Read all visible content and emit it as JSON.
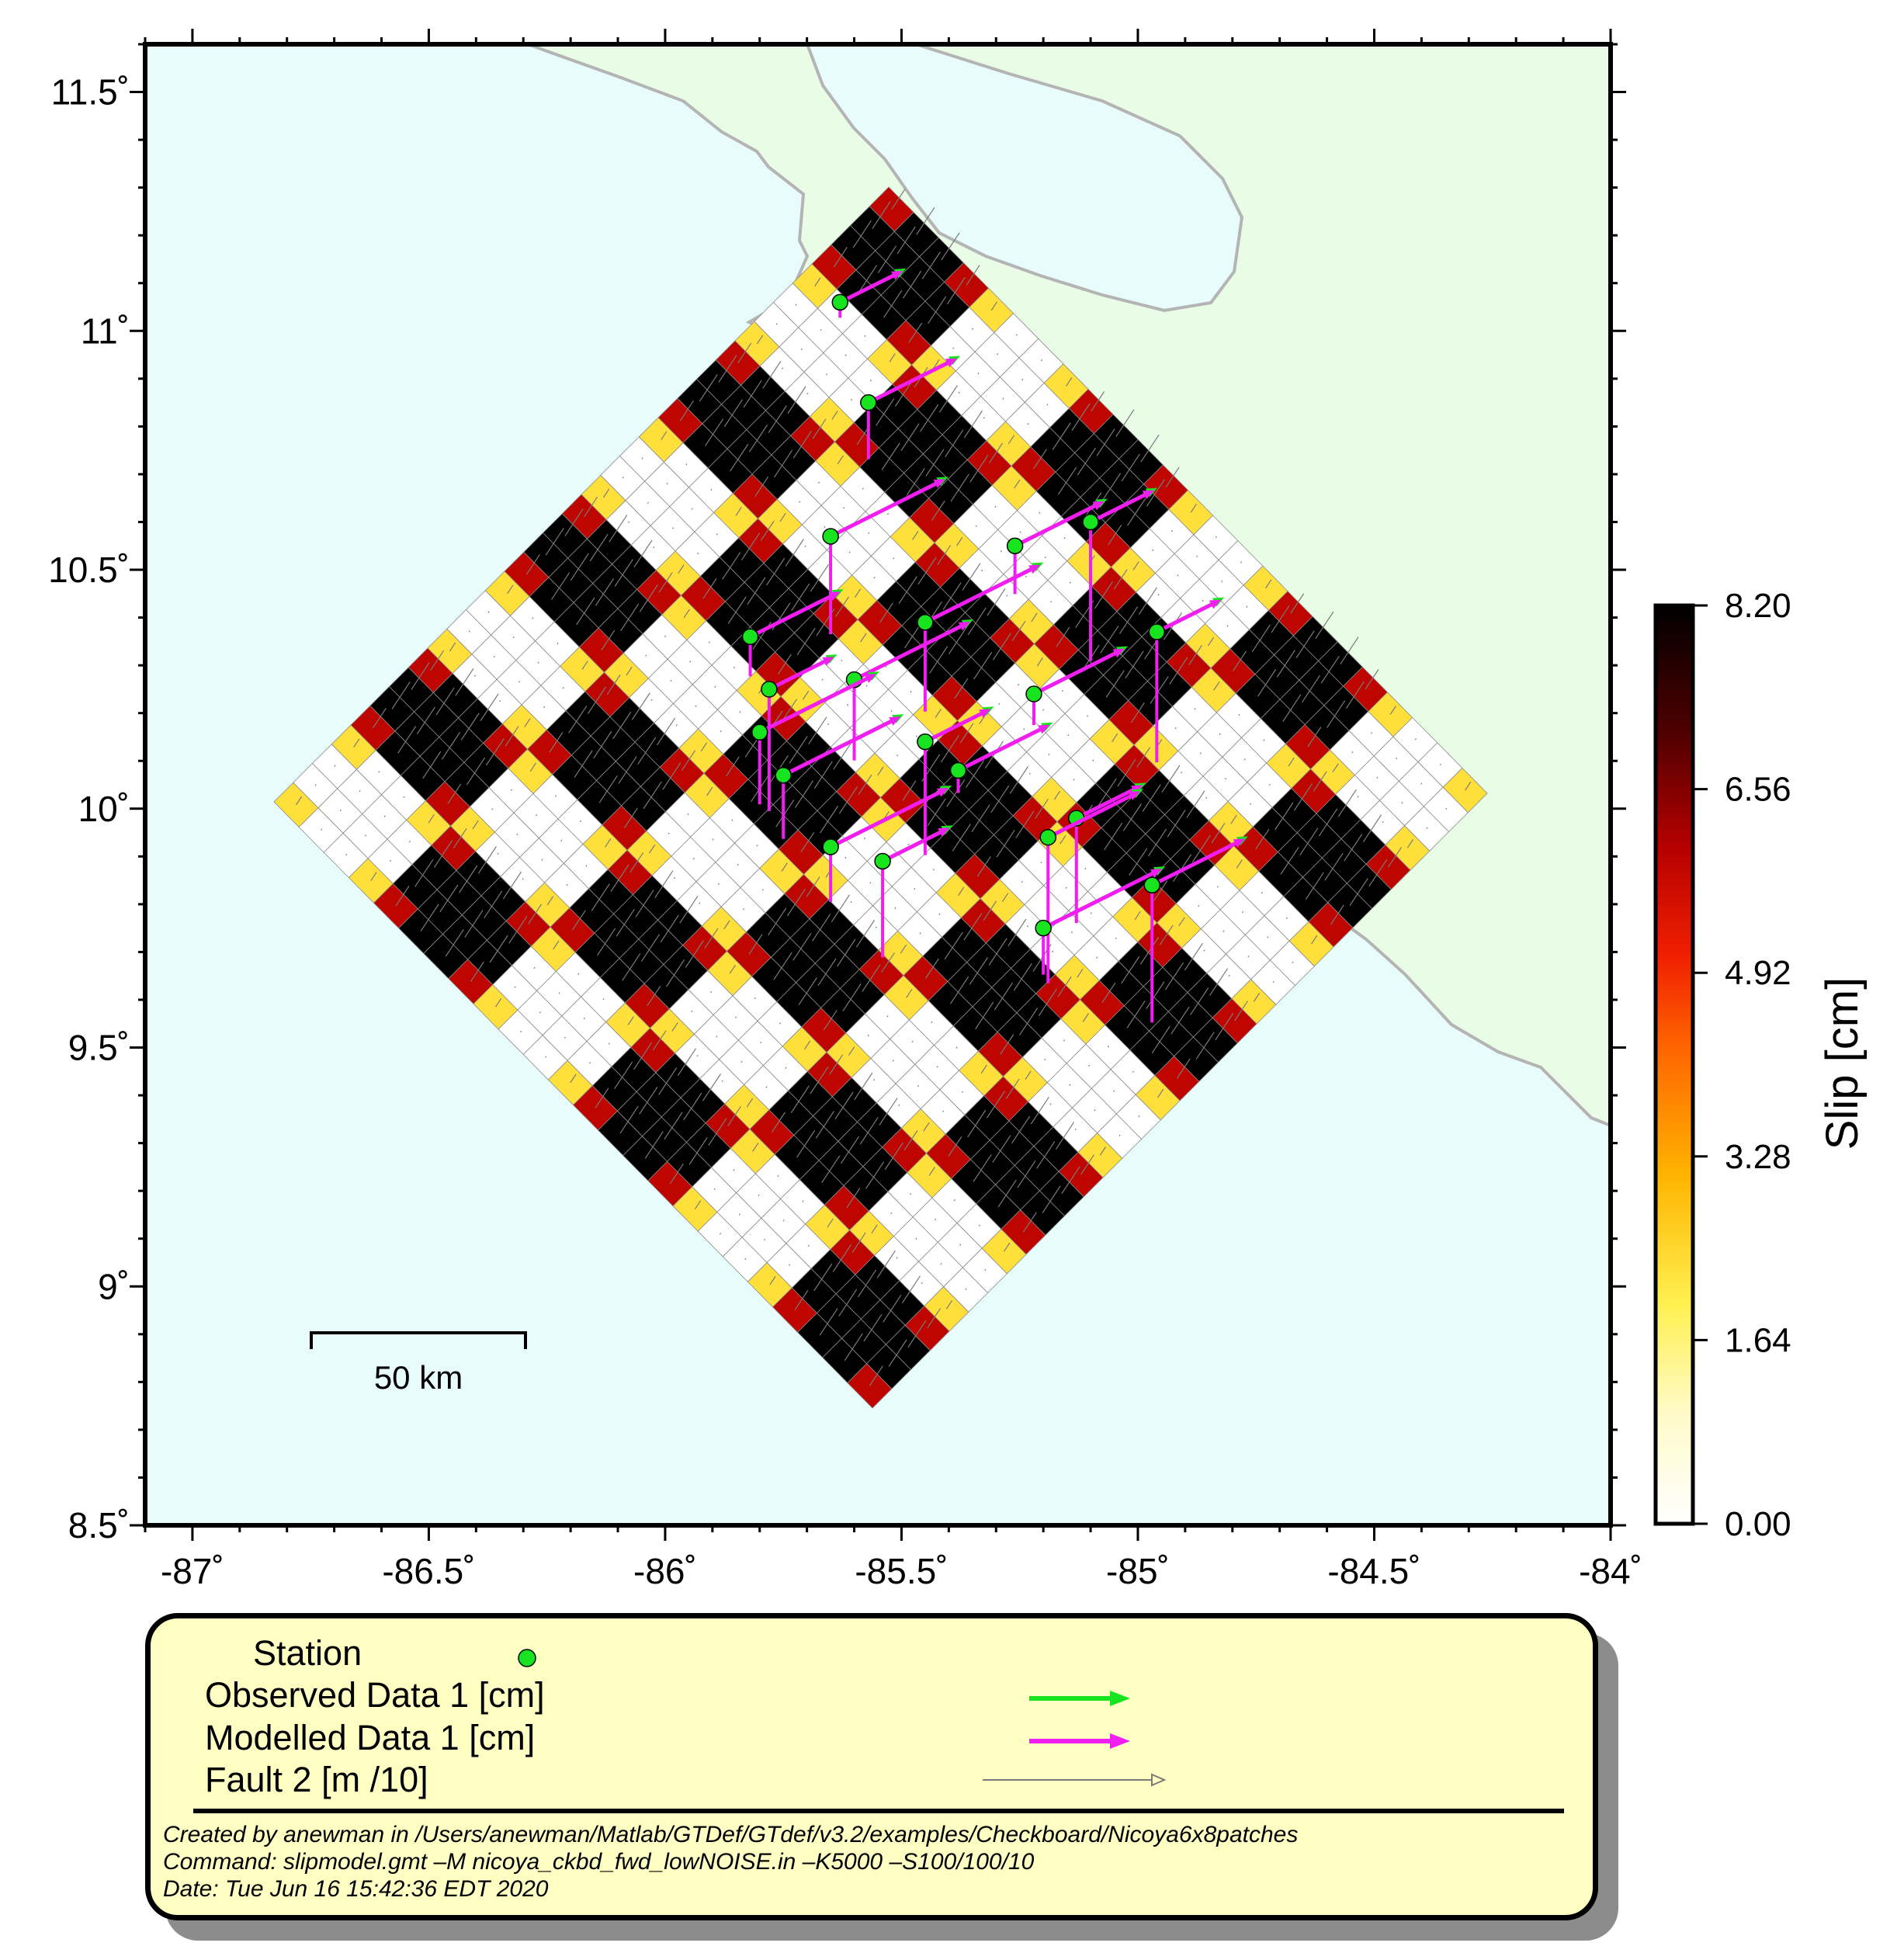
{
  "map": {
    "lon_range": [
      -87.1,
      -84.0
    ],
    "lat_range": [
      8.5,
      11.6
    ],
    "x_ticks": [
      "-87˚",
      "-86.5˚",
      "-86˚",
      "-85.5˚",
      "-85˚",
      "-84.5˚",
      "-84˚"
    ],
    "y_ticks": [
      "8.5˚",
      "9˚",
      "9.5˚",
      "10˚",
      "10.5˚",
      "11˚",
      "11.5˚"
    ],
    "colors": {
      "ocean": "#e8fcfc",
      "land": "#e8fce6",
      "coastline": "#b4b4b4",
      "station": "#17e31f",
      "observed": "#17e31f",
      "modelled": "#f01ef0",
      "fault": "#7a7a7a"
    },
    "scale_bar": "50 km",
    "fault_grid": {
      "columns": 24,
      "rows": 32
    }
  },
  "colorbar": {
    "title": "Slip [cm]",
    "min": 0.0,
    "max": 8.2,
    "labels": [
      "8.20",
      "6.56",
      "4.92",
      "3.28",
      "1.64",
      "0.00"
    ]
  },
  "stations": [
    {
      "lon": -85.63,
      "lat": 11.06
    },
    {
      "lon": -85.57,
      "lat": 10.85
    },
    {
      "lon": -85.65,
      "lat": 10.57
    },
    {
      "lon": -85.1,
      "lat": 10.6
    },
    {
      "lon": -85.26,
      "lat": 10.55
    },
    {
      "lon": -85.45,
      "lat": 10.39
    },
    {
      "lon": -84.96,
      "lat": 10.37
    },
    {
      "lon": -85.82,
      "lat": 10.36
    },
    {
      "lon": -85.6,
      "lat": 10.27
    },
    {
      "lon": -85.78,
      "lat": 10.25
    },
    {
      "lon": -85.22,
      "lat": 10.24
    },
    {
      "lon": -85.8,
      "lat": 10.16
    },
    {
      "lon": -85.45,
      "lat": 10.14
    },
    {
      "lon": -85.38,
      "lat": 10.08
    },
    {
      "lon": -85.75,
      "lat": 10.07
    },
    {
      "lon": -85.13,
      "lat": 9.98
    },
    {
      "lon": -85.19,
      "lat": 9.94
    },
    {
      "lon": -85.65,
      "lat": 9.92
    },
    {
      "lon": -85.54,
      "lat": 9.89
    },
    {
      "lon": -84.97,
      "lat": 9.84
    },
    {
      "lon": -85.2,
      "lat": 9.75
    }
  ],
  "legend": {
    "station": "Station",
    "observed": "Observed Data 1 [cm]",
    "modelled": "Modelled Data 1 [cm]",
    "fault": "Fault 2 [m /10]",
    "created_by": "Created by anewman in /Users/anewman/Matlab/GTDef/GTdef/v3.2/examples/Checkboard/Nicoya6x8patches",
    "command": "Command: slipmodel.gmt –M nicoya_ckbd_fwd_lowNOISE.in –K5000 –S100/100/10",
    "date": "Date: Tue Jun 16 15:42:36 EDT 2020"
  }
}
